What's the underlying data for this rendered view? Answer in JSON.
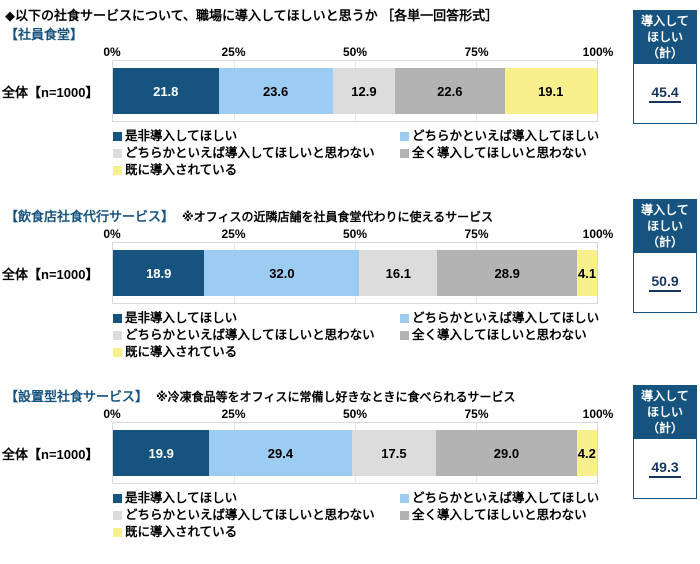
{
  "title": "◆以下の社食サービスについて、職場に導入してほしいと思うか ［各単一回答形式］",
  "row_label": "全体【n=1000】",
  "axis_ticks": [
    "0%",
    "25%",
    "50%",
    "75%",
    "100%"
  ],
  "summary_box_label": "導入して\nほしい\n（計）",
  "colors": {
    "accent_blue": "#16537e",
    "value_text": "#17365d",
    "plot_border": "#d9d9d9"
  },
  "chart_data": [
    {
      "type": "bar",
      "stacked": true,
      "orientation": "horizontal",
      "section_title": "【社員食堂】",
      "note": "",
      "categories": [
        "全体【n=1000】"
      ],
      "series": [
        {
          "name": "是非導入してほしい",
          "color": "#16537e",
          "values": [
            21.8
          ]
        },
        {
          "name": "どちらかといえば導入してほしい",
          "color": "#9cccf2",
          "values": [
            23.6
          ]
        },
        {
          "name": "どちらかといえば導入してほしいと思わない",
          "color": "#dcdcdc",
          "values": [
            12.9
          ]
        },
        {
          "name": "全く導入してほしいと思わない",
          "color": "#b3b3b3",
          "values": [
            22.6
          ]
        },
        {
          "name": "既に導入されている",
          "color": "#f7f08c",
          "values": [
            19.1
          ]
        }
      ],
      "xlim": [
        0,
        100
      ],
      "x_ticks": [
        "0%",
        "25%",
        "50%",
        "75%",
        "100%"
      ],
      "summary": {
        "label": "導入してほしい（計）",
        "value": "45.4"
      }
    },
    {
      "type": "bar",
      "stacked": true,
      "orientation": "horizontal",
      "section_title": "【飲食店社食代行サービス】",
      "note": "※オフィスの近隣店舗を社員食堂代わりに使えるサービス",
      "categories": [
        "全体【n=1000】"
      ],
      "series": [
        {
          "name": "是非導入してほしい",
          "color": "#16537e",
          "values": [
            18.9
          ]
        },
        {
          "name": "どちらかといえば導入してほしい",
          "color": "#9cccf2",
          "values": [
            32.0
          ]
        },
        {
          "name": "どちらかといえば導入してほしいと思わない",
          "color": "#dcdcdc",
          "values": [
            16.1
          ]
        },
        {
          "name": "全く導入してほしいと思わない",
          "color": "#b3b3b3",
          "values": [
            28.9
          ]
        },
        {
          "name": "既に導入されている",
          "color": "#f7f08c",
          "values": [
            4.1
          ]
        }
      ],
      "xlim": [
        0,
        100
      ],
      "x_ticks": [
        "0%",
        "25%",
        "50%",
        "75%",
        "100%"
      ],
      "summary": {
        "label": "導入してほしい（計）",
        "value": "50.9"
      }
    },
    {
      "type": "bar",
      "stacked": true,
      "orientation": "horizontal",
      "section_title": "【設置型社食サービス】",
      "note": "※冷凍食品等をオフィスに常備し好きなときに食べられるサービス",
      "categories": [
        "全体【n=1000】"
      ],
      "series": [
        {
          "name": "是非導入してほしい",
          "color": "#16537e",
          "values": [
            19.9
          ]
        },
        {
          "name": "どちらかといえば導入してほしい",
          "color": "#9cccf2",
          "values": [
            29.4
          ]
        },
        {
          "name": "どちらかといえば導入してほしいと思わない",
          "color": "#dcdcdc",
          "values": [
            17.5
          ]
        },
        {
          "name": "全く導入してほしいと思わない",
          "color": "#b3b3b3",
          "values": [
            29.0
          ]
        },
        {
          "name": "既に導入されている",
          "color": "#f7f08c",
          "values": [
            4.2
          ]
        }
      ],
      "xlim": [
        0,
        100
      ],
      "x_ticks": [
        "0%",
        "25%",
        "50%",
        "75%",
        "100%"
      ],
      "summary": {
        "label": "導入してほしい（計）",
        "value": "49.3"
      }
    }
  ]
}
